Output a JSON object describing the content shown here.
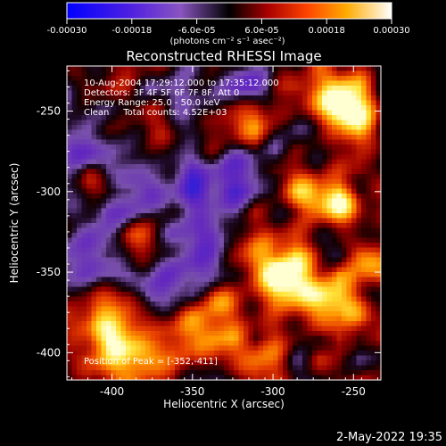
{
  "colorbar": {
    "tick_labels": [
      "-0.00030",
      "-0.00018",
      "-6.0e-05",
      "6.0e-05",
      "0.00018",
      "0.00030"
    ],
    "tick_values": [
      -0.0003,
      -0.00018,
      -6e-05,
      6e-05,
      0.00018,
      0.0003
    ],
    "min": -0.0003,
    "max": 0.0003,
    "units_label": "(photons cm⁻² s⁻¹ asec⁻²)"
  },
  "chart_data": {
    "type": "heatmap",
    "title": "Reconstructed RHESSI Image",
    "xlabel": "Heliocentric X (arcsec)",
    "ylabel": "Heliocentric Y (arcsec)",
    "xlim": [
      -428,
      -233
    ],
    "ylim": [
      -417,
      -222
    ],
    "x_ticks": [
      -400,
      -350,
      -300,
      -250
    ],
    "x_tick_labels": [
      "-400",
      "-350",
      "-300",
      "-250"
    ],
    "y_ticks": [
      -400,
      -350,
      -300,
      -250
    ],
    "y_tick_labels": [
      "-400",
      "-350",
      "-300",
      "-250"
    ],
    "colormap": "blue-purple-black-red-orange-yellow-white",
    "colormap_stops": [
      "#0000ff",
      "#6a00d8",
      "#8a55c0",
      "#000000",
      "#aa0000",
      "#ff4400",
      "#ffaa00",
      "#ffff80",
      "#ffffff"
    ],
    "peak_position": [
      -352,
      -411
    ],
    "info_lines": [
      "10-Aug-2004 17:29:12.000 to 17:35:12.000",
      "Detectors: 3F 4F 5F 6F 7F 8F, Att 0",
      "Energy Range: 25.0 - 50.0 keV",
      "Clean     Total counts: 4.52E+03"
    ],
    "peak_label": "Position of Peak = [-352,-411]"
  },
  "footer": {
    "timestamp": "2-May-2022 19:35"
  }
}
